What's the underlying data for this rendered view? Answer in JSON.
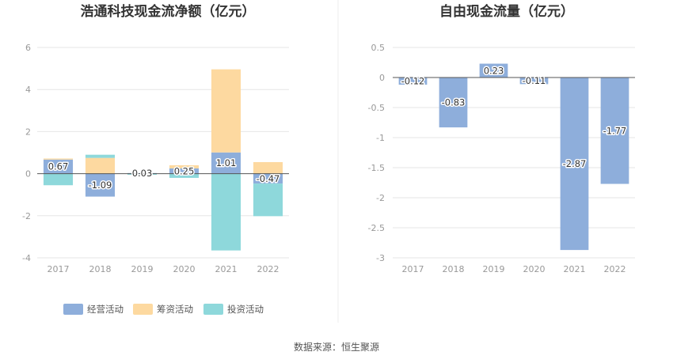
{
  "source": "数据来源：恒生聚源",
  "chart_data": [
    {
      "type": "bar",
      "stacked": true,
      "title": "浩通科技现金流净额（亿元）",
      "categories": [
        "2017",
        "2018",
        "2019",
        "2020",
        "2021",
        "2022"
      ],
      "ylim": [
        -4,
        6
      ],
      "yticks": [
        6,
        4,
        2,
        0,
        -2,
        -4
      ],
      "grid": true,
      "legend_position": "bottom",
      "series": [
        {
          "name": "经营活动",
          "color": "#8eaedb",
          "values": [
            0.67,
            -1.09,
            0.03,
            0.25,
            1.01,
            -0.47
          ],
          "labels": [
            "0.67",
            "-1.09",
            "0.03",
            "0.25",
            "1.01",
            "-0.47"
          ]
        },
        {
          "name": "筹资活动",
          "color": "#fdd9a0",
          "values": [
            0.05,
            0.75,
            0.0,
            0.15,
            3.95,
            0.55
          ]
        },
        {
          "name": "投资活动",
          "color": "#8ed8db",
          "values": [
            -0.55,
            0.15,
            -0.05,
            -0.2,
            -3.65,
            -1.55
          ]
        }
      ]
    },
    {
      "type": "bar",
      "title": "自由现金流量（亿元）",
      "categories": [
        "2017",
        "2018",
        "2019",
        "2020",
        "2021",
        "2022"
      ],
      "ylim": [
        -3,
        0.5
      ],
      "yticks": [
        "0.5",
        "0",
        "-0.5",
        "-1",
        "-1.5",
        "-2",
        "-2.5",
        "-3"
      ],
      "grid": true,
      "series": [
        {
          "name": "",
          "color": "#8eaedb",
          "values": [
            -0.12,
            -0.83,
            0.23,
            -0.11,
            -2.87,
            -1.77
          ],
          "labels": [
            "-0.12",
            "-0.83",
            "0.23",
            "-0.11",
            "-2.87",
            "-1.77"
          ]
        }
      ]
    }
  ]
}
